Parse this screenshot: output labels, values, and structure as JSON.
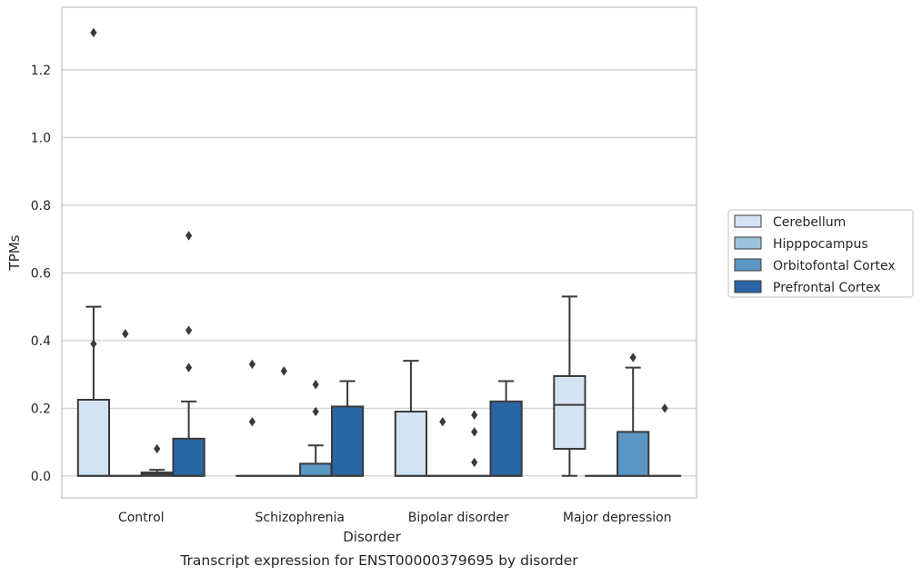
{
  "chart_data": {
    "type": "box",
    "xlabel": "Disorder",
    "ylabel": "TPMs",
    "caption": "Transcript expression for ENST00000379695 by disorder",
    "ylim": [
      -0.065,
      1.385
    ],
    "yticks": [
      "0.0",
      "0.2",
      "0.4",
      "0.6",
      "0.8",
      "1.0",
      "1.2"
    ],
    "grid": true,
    "legend_position": "right",
    "categories": [
      "Control",
      "Schizophrenia",
      "Bipolar disorder",
      "Major depression"
    ],
    "series": [
      {
        "name": "Cerebellum",
        "color": "#d4e3f1",
        "boxes": [
          {
            "min": 0,
            "q1": 0,
            "median": 0,
            "q3": 0.225,
            "max": 0.5,
            "outliers": [
              0.39,
              1.31
            ]
          },
          {
            "min": 0,
            "q1": 0,
            "median": 0,
            "q3": 0,
            "max": 0,
            "outliers": [
              0.16,
              0.33
            ]
          },
          {
            "min": 0,
            "q1": 0,
            "median": 0,
            "q3": 0.19,
            "max": 0.34,
            "outliers": []
          },
          {
            "min": 0,
            "q1": 0.08,
            "median": 0.21,
            "q3": 0.295,
            "max": 0.53,
            "outliers": []
          }
        ]
      },
      {
        "name": "Hipppocampus",
        "color": "#9cc3dd",
        "boxes": [
          {
            "min": 0,
            "q1": 0,
            "median": 0,
            "q3": 0,
            "max": 0,
            "outliers": [
              0.42
            ]
          },
          {
            "min": 0,
            "q1": 0,
            "median": 0,
            "q3": 0,
            "max": 0,
            "outliers": [
              0.31
            ]
          },
          {
            "min": 0,
            "q1": 0,
            "median": 0,
            "q3": 0,
            "max": 0,
            "outliers": [
              0.16
            ]
          },
          {
            "min": 0,
            "q1": 0,
            "median": 0,
            "q3": 0,
            "max": 0,
            "outliers": []
          }
        ]
      },
      {
        "name": "Orbitofontal Cortex",
        "color": "#5a97c4",
        "boxes": [
          {
            "min": 0,
            "q1": 0,
            "median": 0.005,
            "q3": 0.01,
            "max": 0.018,
            "outliers": [
              0.08
            ]
          },
          {
            "min": 0,
            "q1": 0,
            "median": 0,
            "q3": 0.036,
            "max": 0.09,
            "outliers": [
              0.19,
              0.27
            ]
          },
          {
            "min": 0,
            "q1": 0,
            "median": 0,
            "q3": 0,
            "max": 0,
            "outliers": [
              0.04,
              0.13,
              0.18
            ]
          },
          {
            "min": 0,
            "q1": 0,
            "median": 0,
            "q3": 0.13,
            "max": 0.32,
            "outliers": [
              0.35
            ]
          }
        ]
      },
      {
        "name": "Prefrontal Cortex",
        "color": "#2a65a4",
        "boxes": [
          {
            "min": 0,
            "q1": 0,
            "median": 0,
            "q3": 0.11,
            "max": 0.22,
            "outliers": [
              0.32,
              0.43,
              0.71
            ]
          },
          {
            "min": 0,
            "q1": 0,
            "median": 0,
            "q3": 0.205,
            "max": 0.28,
            "outliers": []
          },
          {
            "min": 0,
            "q1": 0,
            "median": 0,
            "q3": 0.22,
            "max": 0.28,
            "outliers": []
          },
          {
            "min": 0,
            "q1": 0,
            "median": 0,
            "q3": 0,
            "max": 0,
            "outliers": [
              0.2
            ]
          }
        ]
      }
    ]
  }
}
